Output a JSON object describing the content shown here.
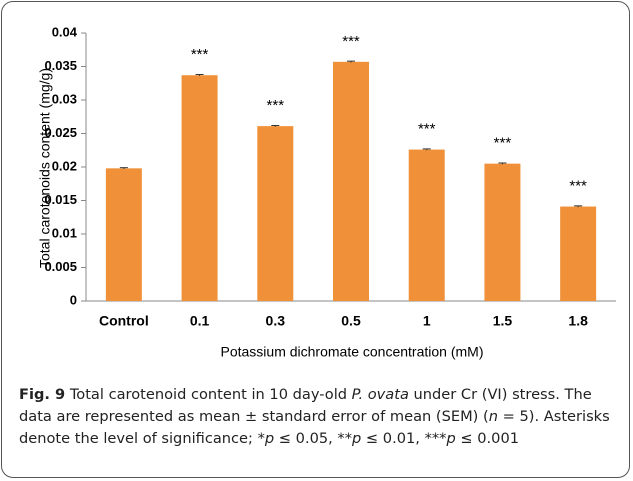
{
  "chart_data": {
    "type": "bar",
    "ylabel": "Total carotenoids content (mg/g)",
    "xlabel": "Potassium dichromate concentration (mM)",
    "categories": [
      "Control",
      "0.1",
      "0.3",
      "0.5",
      "1",
      "1.5",
      "1.8"
    ],
    "values": [
      0.0198,
      0.0337,
      0.0261,
      0.0357,
      0.0226,
      0.0205,
      0.0141
    ],
    "errors": [
      0.0001,
      0.0001,
      0.0001,
      0.0001,
      0.0001,
      0.0001,
      0.0001
    ],
    "annotations": [
      null,
      "***",
      "***",
      "***",
      "***",
      "***",
      "***"
    ],
    "color": "#f0913a",
    "ylim": [
      0,
      0.04
    ],
    "yticks": [
      0,
      0.005,
      0.01,
      0.015,
      0.02,
      0.025,
      0.03,
      0.035,
      0.04
    ],
    "grid": false
  },
  "caption": {
    "label": "Fig. 9",
    "parts": [
      " Total carotenoid content in 10 day-old ",
      "P. ovata",
      " under Cr (VI) stress. The data are represented as mean ± standard error of mean (SEM) (",
      "n",
      " = 5). Asterisks denote the level of significance; *",
      "p",
      " ≤ 0.05, **",
      "p",
      " ≤ 0.01, ***",
      "p",
      " ≤ 0.001"
    ]
  }
}
